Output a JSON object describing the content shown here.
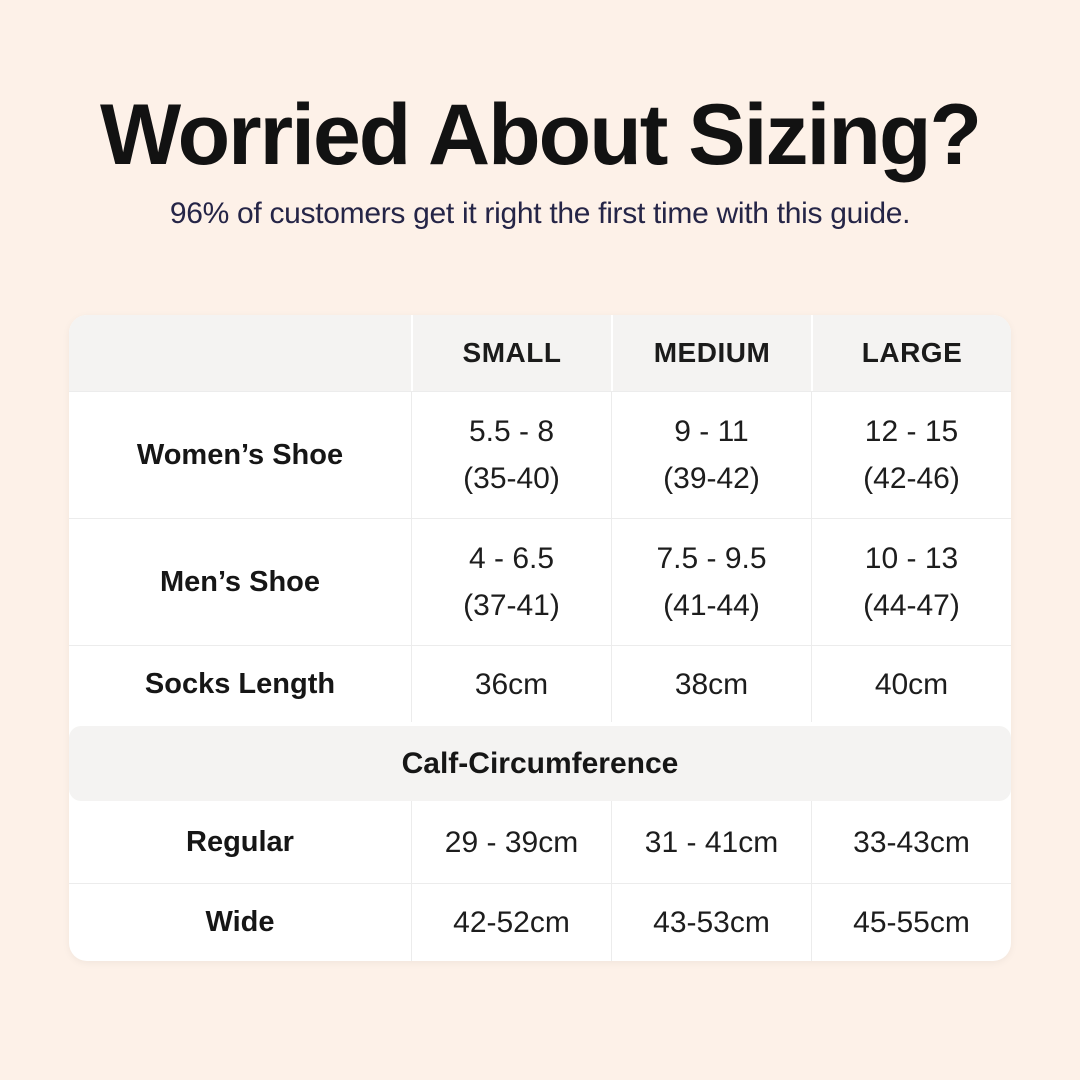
{
  "header": {
    "title": "Worried About Sizing?",
    "subtitle": "96% of customers get it right the first time with this guide."
  },
  "table": {
    "columns": [
      "SMALL",
      "MEDIUM",
      "LARGE"
    ],
    "shoe_rows": [
      {
        "label": "Women’s Shoe",
        "values": [
          {
            "main": "5.5 - 8",
            "sub": "(35-40)"
          },
          {
            "main": "9 - 11",
            "sub": "(39-42)"
          },
          {
            "main": "12 - 15",
            "sub": "(42-46)"
          }
        ]
      },
      {
        "label": "Men’s Shoe",
        "values": [
          {
            "main": "4 - 6.5",
            "sub": "(37-41)"
          },
          {
            "main": "7.5 - 9.5",
            "sub": "(41-44)"
          },
          {
            "main": "10 - 13",
            "sub": "(44-47)"
          }
        ]
      }
    ],
    "socks_row": {
      "label": "Socks Length",
      "values": [
        "36cm",
        "38cm",
        "40cm"
      ]
    },
    "calf_header": "Calf-Circumference",
    "calf_rows": [
      {
        "label": "Regular",
        "values": [
          "29 - 39cm",
          "31 - 41cm",
          "33-43cm"
        ]
      },
      {
        "label": "Wide",
        "values": [
          "42-52cm",
          "43-53cm",
          "45-55cm"
        ]
      }
    ]
  },
  "colors": {
    "page_background": "#fdf1e8",
    "title_text": "#121212",
    "subtitle_text": "#252547",
    "table_background": "#ffffff",
    "header_band": "#f4f3f2",
    "divider": "#ececec",
    "body_text": "#1d1d1d"
  }
}
